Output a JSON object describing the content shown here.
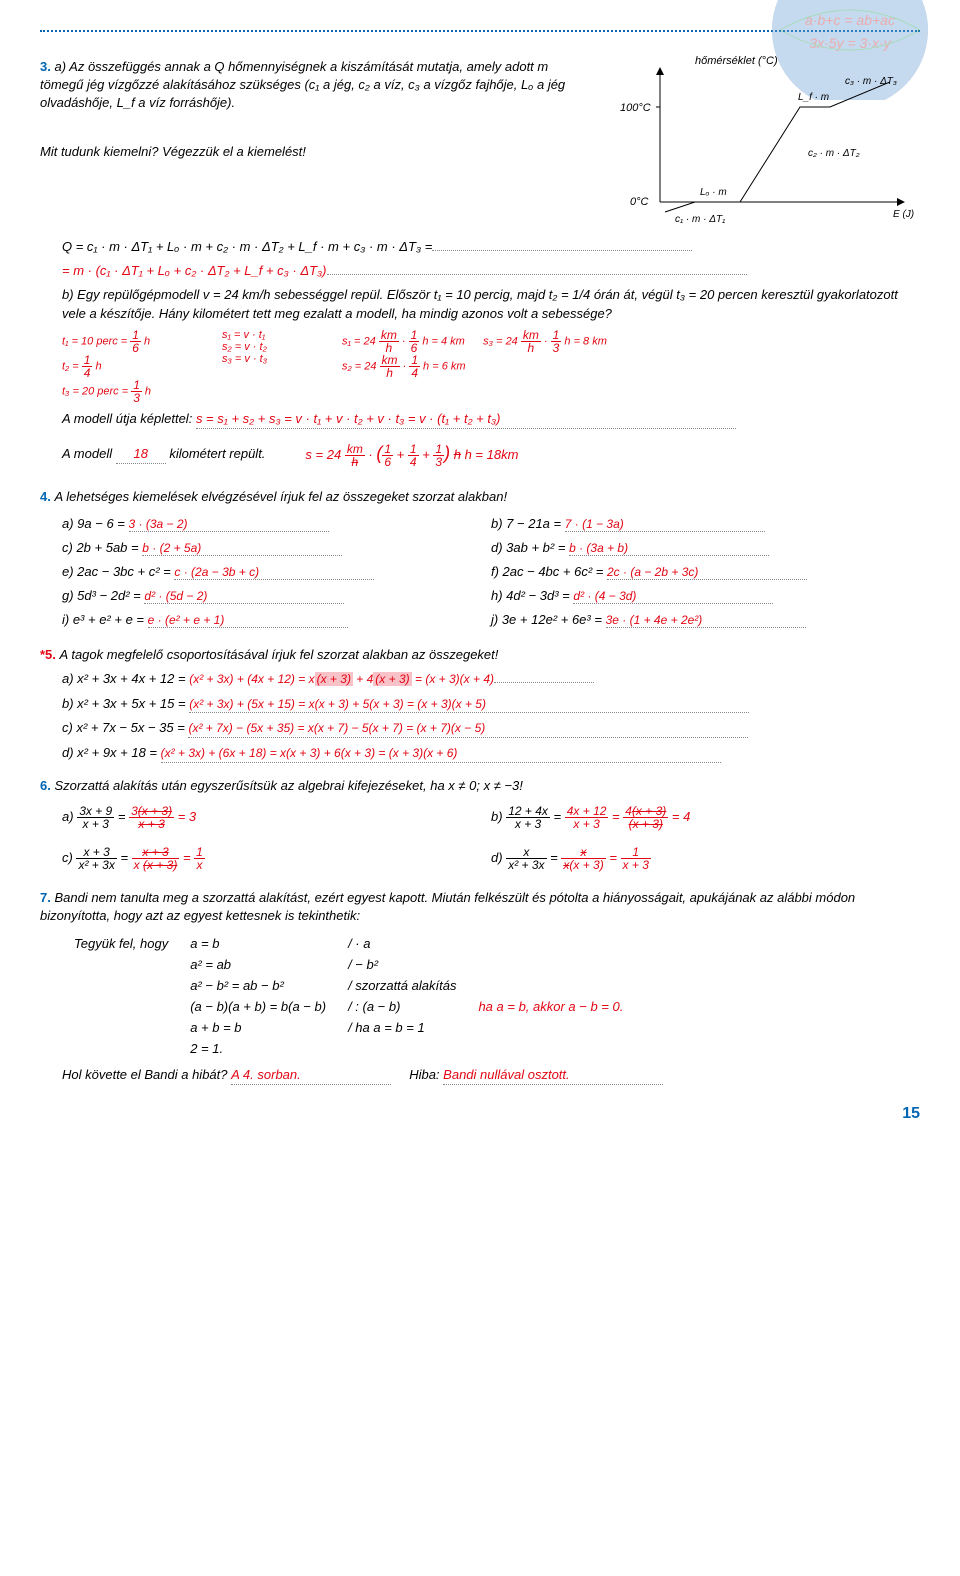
{
  "page_number": "15",
  "decor": {
    "formula_top": "a·b+c = ab+ac",
    "formula_bot": "3x·5y = 3·x·y"
  },
  "q3": {
    "label": "3.",
    "a_text": "a) Az összefüggés annak a Q hőmennyiségnek a kiszámítását mutatja, amely adott m tömegű jég vízgőzzé alakításához szükséges (c₁ a jég, c₂ a víz, c₃ a vízgőz fajhője, Lₒ a jég olvadáshője, L_f a víz forráshője).",
    "hint": "Mit tudunk kiemelni? Végezzük el a kiemelést!",
    "chart": {
      "y_label": "hőmérséklet (°C)",
      "x_label": "E (J)",
      "y_tick_100": "100°C",
      "y_tick_0": "0°C",
      "seg1": "c₁ · m · ΔT₁",
      "seg_lo": "Lₒ · m",
      "seg2": "c₂ · m · ΔT₂",
      "seg_lf": "L_f · m",
      "seg3": "c₃ · m · ΔT₃"
    },
    "eq_line1": "Q = c₁ · m · ΔT₁ + Lₒ · m + c₂ · m · ΔT₂ + L_f · m  + c₃ · m · ΔT₃ =",
    "eq_line2": "= m · (c₁ · ΔT₁ + Lₒ + c₂ · ΔT₂ + L_f + c₃ · ΔT₃)",
    "b_text": "b) Egy repülőgépmodell v = 24 km/h sebességgel repül. Először t₁ = 10 percig, majd t₂ = 1/4 órán át, végül t₃ = 20 percen keresztül gyakorlatozott vele a készítője. Hány kilométert tett meg ezalatt a modell, ha mindig azonos volt a sebessége?",
    "b_work": {
      "t1": "t₁ = 10 perc = ",
      "t1_ans": " h",
      "t2": "t₂ = ",
      "t2_ans": " h",
      "t3": "t₃ = 20 perc = ",
      "t3_ans": " h",
      "s1": "s₁ = v · t₁",
      "s2": "s₂ = v · t₂",
      "s3": "s₃ = v · t₃",
      "s1v_a": "s₁ = 24 ",
      "s1v_b": " h = 4 km",
      "s3v_a": "s₃ = 24 ",
      "s3v_b": " h = 8 km",
      "s2v_a": "s₂ = 24 ",
      "s2v_b": " h = 6 km",
      "sum_label": "A modell útja képlettel:",
      "sum": "s = s₁ + s₂ + s₃ = v · t₁ + v · t₂ + v · t₃ = v · (t₁ + t₂ + t₃)",
      "model_text1": "A modell ",
      "model_ans": "18",
      "model_text2": " kilométert repült.",
      "final": "s = 24 ",
      "final_sub": "km/h",
      "final_rhs": " h = 18km"
    }
  },
  "q4": {
    "label": "4.",
    "title": "A lehetséges kiemelések elvégzésével írjuk fel az összegeket szorzat alakban!",
    "items": [
      {
        "l": "a) 9a − 6 =",
        "a": "3 · (3a − 2)"
      },
      {
        "l": "b) 7 − 21a =",
        "a": "7 · (1 − 3a)"
      },
      {
        "l": "c) 2b + 5ab =",
        "a": "b · (2 + 5a)"
      },
      {
        "l": "d) 3ab + b² =",
        "a": "b · (3a + b)"
      },
      {
        "l": "e) 2ac − 3bc + c² =",
        "a": "c · (2a − 3b + c)"
      },
      {
        "l": "f) 2ac − 4bc + 6c² =",
        "a": "2c · (a − 2b + 3c)"
      },
      {
        "l": "g) 5d³ − 2d² =",
        "a": "d² · (5d − 2)"
      },
      {
        "l": "h) 4d² − 3d³ =",
        "a": "d² · (4 − 3d)"
      },
      {
        "l": "i) e³ + e² + e =",
        "a": "e · (e² + e + 1)"
      },
      {
        "l": "j) 3e + 12e² + 6e³ =",
        "a": "3e · (1 + 4e + 2e²)"
      }
    ]
  },
  "q5": {
    "label": "*5.",
    "title": "A tagok megfelelő csoportosításával írjuk fel szorzat alakban az összegeket!",
    "items": [
      {
        "l": "a) x² + 3x + 4x + 12 =",
        "a1": "(x² + 3x) + (4x + 12) = x",
        "hl1": "(x + 3)",
        "mid": " + 4",
        "hl2": "(x + 3)",
        "a2": " = (x + 3)(x + 4)"
      },
      {
        "l": "b) x² + 3x + 5x + 15 =",
        "a": "(x² + 3x) + (5x + 15) = x(x + 3) + 5(x + 3) = (x + 3)(x + 5)"
      },
      {
        "l": "c) x² + 7x − 5x − 35 =",
        "a": "(x² + 7x) − (5x + 35) = x(x + 7) − 5(x + 7) = (x + 7)(x − 5)"
      },
      {
        "l": "d) x² + 9x + 18 =",
        "a": "(x² + 3x) + (6x + 18) = x(x + 3) + 6(x + 3) = (x + 3)(x + 6)"
      }
    ]
  },
  "q6": {
    "label": "6.",
    "title": "Szorzattá alakítás után egyszerűsítsük az algebrai kifejezéseket, ha x ≠ 0; x ≠ −3!",
    "items": {
      "a_label": "a)",
      "b_label": "b)",
      "c_label": "c)",
      "d_label": "d)"
    }
  },
  "q7": {
    "label": "7.",
    "intro": "Bandi nem tanulta meg a szorzattá alakítást, ezért egyest kapott. Miután felkészült és pótolta a hiányosságait, apukájának az alábbi módon bizonyította, hogy azt az egyest kettesnek is tekinthetik:",
    "suppose": "Tegyük fel, hogy",
    "lines": [
      {
        "l": "a = b",
        "r": "/ · a"
      },
      {
        "l": "a² = ab",
        "r": "/ − b²"
      },
      {
        "l": "a² − b² = ab − b²",
        "r": "/ szorzattá alakítás"
      },
      {
        "l": "(a − b)(a + b) = b(a − b)",
        "r": "/ : (a − b)",
        "ann": "ha a = b, akkor a − b = 0."
      },
      {
        "l": "a + b = b",
        "r": "/ ha a = b = 1"
      },
      {
        "l": "2 = 1.",
        "r": ""
      }
    ],
    "q_left": "Hol követte el Bandi a hibát?",
    "a_left": "A 4. sorban.",
    "q_right": "Hiba:",
    "a_right": "Bandi nullával osztott."
  }
}
